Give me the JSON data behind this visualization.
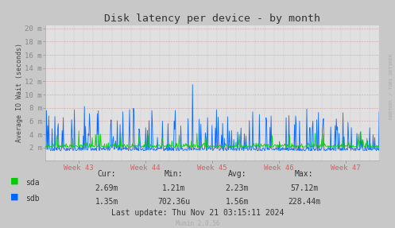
{
  "title": "Disk latency per device - by month",
  "ylabel": "Average IO Wait (seconds)",
  "background_color": "#c8c8c8",
  "plot_bg_color": "#e0e0e0",
  "sda_color": "#00cc00",
  "sdb_color": "#0066ff",
  "ytick_labels": [
    "2 m",
    "4 m",
    "6 m",
    "8 m",
    "10 m",
    "12 m",
    "14 m",
    "16 m",
    "18 m",
    "20 m"
  ],
  "ytick_values": [
    0.002,
    0.004,
    0.006,
    0.008,
    0.01,
    0.012,
    0.014,
    0.016,
    0.018,
    0.02
  ],
  "xtick_labels": [
    "Week 43",
    "Week 44",
    "Week 45",
    "Week 46",
    "Week 47"
  ],
  "ymax": 0.0205,
  "ymin": 0.0,
  "legend_sda": "sda",
  "legend_sdb": "sdb",
  "stats_header": [
    "Cur:",
    "Min:",
    "Avg:",
    "Max:"
  ],
  "stats_sda": [
    "2.69m",
    "1.21m",
    "2.23m",
    "57.12m"
  ],
  "stats_sdb": [
    "1.35m",
    "702.36u",
    "1.56m",
    "228.44m"
  ],
  "last_update": "Last update: Thu Nov 21 03:15:11 2024",
  "munin_version": "Munin 2.0.56",
  "rrdtool_label": "RRDTOOL / TOBI OETIKER",
  "n_points": 600
}
